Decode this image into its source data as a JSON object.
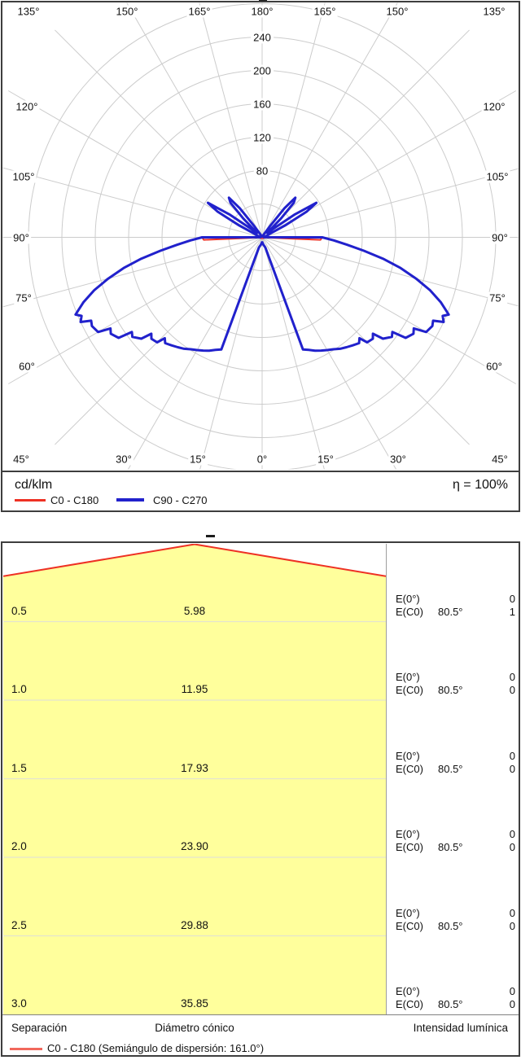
{
  "chart_data": [
    {
      "type": "polar",
      "unit_label": "cd/klm",
      "efficiency_label": "η = 100%",
      "angle_step_deg": 15,
      "radial_ticks": [
        240,
        200,
        160,
        120,
        80
      ],
      "radial_axis_max": 280,
      "angle_labels_top": [
        "135°",
        "150°",
        "165°",
        "180°",
        "165°",
        "150°",
        "135°"
      ],
      "angle_labels_bottom": [
        "45°",
        "30°",
        "15°",
        "0°",
        "15°",
        "30°",
        "45°"
      ],
      "angle_labels_left": [
        "120°",
        "105°",
        "90°",
        "75°",
        "60°"
      ],
      "angle_labels_right": [
        "120°",
        "105°",
        "90°",
        "75°",
        "60°"
      ],
      "legend": [
        {
          "label": "C0 - C180",
          "color": "#ee3124"
        },
        {
          "label": "C90 - C270",
          "color": "#2121cc"
        }
      ],
      "series": [
        {
          "name": "C0 - C180",
          "color": "#ee3124",
          "stroke_width": 2,
          "samples_gamma_cd": [
            [
              0,
              1
            ],
            [
              30,
              1
            ],
            [
              60,
              2
            ],
            [
              75,
              2
            ],
            [
              80,
              2
            ],
            [
              85,
              3
            ],
            [
              87.5,
              70
            ],
            [
              90,
              72
            ],
            [
              92.5,
              2
            ],
            [
              95,
              2
            ],
            [
              100,
              1
            ],
            [
              120,
              1
            ],
            [
              150,
              1
            ],
            [
              180,
              0.5
            ]
          ]
        },
        {
          "name": "C90 - C270",
          "color": "#2121cc",
          "stroke_width": 3,
          "samples_gamma_cd": [
            [
              0,
              6
            ],
            [
              2.5,
              6
            ],
            [
              5,
              7
            ],
            [
              7.5,
              8
            ],
            [
              10,
              9
            ],
            [
              12.5,
              10
            ],
            [
              15,
              11
            ],
            [
              17.5,
              13
            ],
            [
              20,
              143
            ],
            [
              22.5,
              146
            ],
            [
              25,
              150
            ],
            [
              27.5,
              153
            ],
            [
              30,
              156
            ],
            [
              32.5,
              159
            ],
            [
              35,
              163
            ],
            [
              37.5,
              166
            ],
            [
              40,
              169
            ],
            [
              42.5,
              172
            ],
            [
              44,
              168
            ],
            [
              45,
              178
            ],
            [
              47.5,
              180
            ],
            [
              49,
              176
            ],
            [
              50,
              189
            ],
            [
              52.5,
              196
            ],
            [
              54,
              193
            ],
            [
              55,
              210
            ],
            [
              57.5,
              215
            ],
            [
              59,
              212
            ],
            [
              60,
              227
            ],
            [
              62.5,
              230
            ],
            [
              64,
              228
            ],
            [
              65,
              240
            ],
            [
              66.5,
              236
            ],
            [
              67.5,
              242
            ],
            [
              70,
              228
            ],
            [
              72.5,
              211
            ],
            [
              75,
              191
            ],
            [
              77.5,
              170
            ],
            [
              80,
              147
            ],
            [
              82.5,
              123
            ],
            [
              85,
              102
            ],
            [
              87.5,
              86
            ],
            [
              90,
              72
            ],
            [
              92.5,
              2
            ],
            [
              95,
              2
            ],
            [
              97.5,
              2
            ],
            [
              100,
              3
            ],
            [
              102.5,
              3
            ],
            [
              105,
              4
            ],
            [
              107.5,
              5
            ],
            [
              110,
              6
            ],
            [
              112.5,
              8
            ],
            [
              115,
              10
            ],
            [
              117.5,
              32
            ],
            [
              120,
              62
            ],
            [
              122.5,
              77
            ],
            [
              125,
              48
            ],
            [
              127.5,
              16
            ],
            [
              130,
              8
            ],
            [
              132.5,
              11
            ],
            [
              135,
              32
            ],
            [
              137.5,
              56
            ],
            [
              140,
              62
            ],
            [
              142.5,
              44
            ],
            [
              145,
              16
            ],
            [
              147.5,
              6
            ],
            [
              150,
              3
            ],
            [
              155,
              2
            ],
            [
              160,
              1
            ],
            [
              165,
              1
            ],
            [
              170,
              1
            ],
            [
              175,
              1
            ],
            [
              180,
              1
            ]
          ]
        }
      ]
    },
    {
      "type": "cone_diagram",
      "beam_semi_angle_deg": 80.5,
      "footer_columns": [
        "Separación",
        "Diámetro cónico",
        "Intensidad lumínica"
      ],
      "legend_label": "C0 - C180 (Semiángulo de dispersión: 161.0°)",
      "legend_color": "#f2685c",
      "cone_fill_color": "#ffff9c",
      "cone_line_color": "#ee3124",
      "rows": [
        {
          "separation": "0.5",
          "diameter": "5.98",
          "e0_label": "E(0°)",
          "e0_value": "0",
          "ec0_label": "E(C0)",
          "ec0_angle": "80.5°",
          "ec0_value": "1"
        },
        {
          "separation": "1.0",
          "diameter": "11.95",
          "e0_label": "E(0°)",
          "e0_value": "0",
          "ec0_label": "E(C0)",
          "ec0_angle": "80.5°",
          "ec0_value": "0"
        },
        {
          "separation": "1.5",
          "diameter": "17.93",
          "e0_label": "E(0°)",
          "e0_value": "0",
          "ec0_label": "E(C0)",
          "ec0_angle": "80.5°",
          "ec0_value": "0"
        },
        {
          "separation": "2.0",
          "diameter": "23.90",
          "e0_label": "E(0°)",
          "e0_value": "0",
          "ec0_label": "E(C0)",
          "ec0_angle": "80.5°",
          "ec0_value": "0"
        },
        {
          "separation": "2.5",
          "diameter": "29.88",
          "e0_label": "E(0°)",
          "e0_value": "0",
          "ec0_label": "E(C0)",
          "ec0_angle": "80.5°",
          "ec0_value": "0"
        },
        {
          "separation": "3.0",
          "diameter": "35.85",
          "e0_label": "E(0°)",
          "e0_value": "0",
          "ec0_label": "E(C0)",
          "ec0_angle": "80.5°",
          "ec0_value": "0"
        }
      ]
    }
  ]
}
